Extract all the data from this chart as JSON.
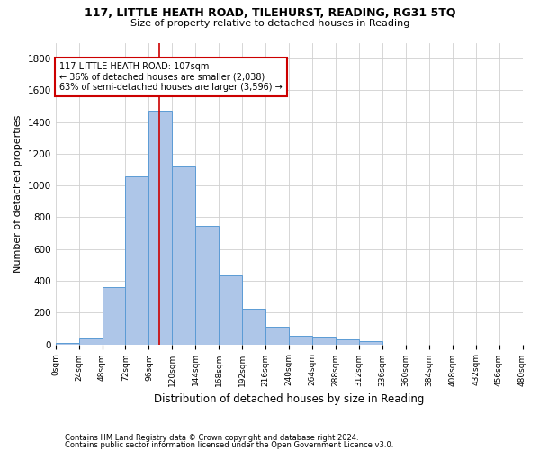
{
  "title1": "117, LITTLE HEATH ROAD, TILEHURST, READING, RG31 5TQ",
  "title2": "Size of property relative to detached houses in Reading",
  "xlabel": "Distribution of detached houses by size in Reading",
  "ylabel": "Number of detached properties",
  "footer1": "Contains HM Land Registry data © Crown copyright and database right 2024.",
  "footer2": "Contains public sector information licensed under the Open Government Licence v3.0.",
  "annotation_line1": "117 LITTLE HEATH ROAD: 107sqm",
  "annotation_line2": "← 36% of detached houses are smaller (2,038)",
  "annotation_line3": "63% of semi-detached houses are larger (3,596) →",
  "bar_edges": [
    0,
    24,
    48,
    72,
    96,
    120,
    144,
    168,
    192,
    216,
    240,
    264,
    288,
    312,
    336,
    360,
    384,
    408,
    432,
    456,
    480
  ],
  "bar_heights": [
    10,
    35,
    360,
    1060,
    1470,
    1120,
    745,
    435,
    225,
    110,
    55,
    50,
    30,
    20,
    0,
    0,
    0,
    0,
    0,
    0
  ],
  "bar_color": "#aec6e8",
  "bar_edge_color": "#5b9bd5",
  "vline_x": 107,
  "vline_color": "#cc0000",
  "ylim": [
    0,
    1900
  ],
  "xlim": [
    0,
    480
  ],
  "annotation_box_color": "#cc0000",
  "background_color": "#ffffff",
  "grid_color": "#d0d0d0",
  "yticks": [
    0,
    200,
    400,
    600,
    800,
    1000,
    1200,
    1400,
    1600,
    1800
  ]
}
